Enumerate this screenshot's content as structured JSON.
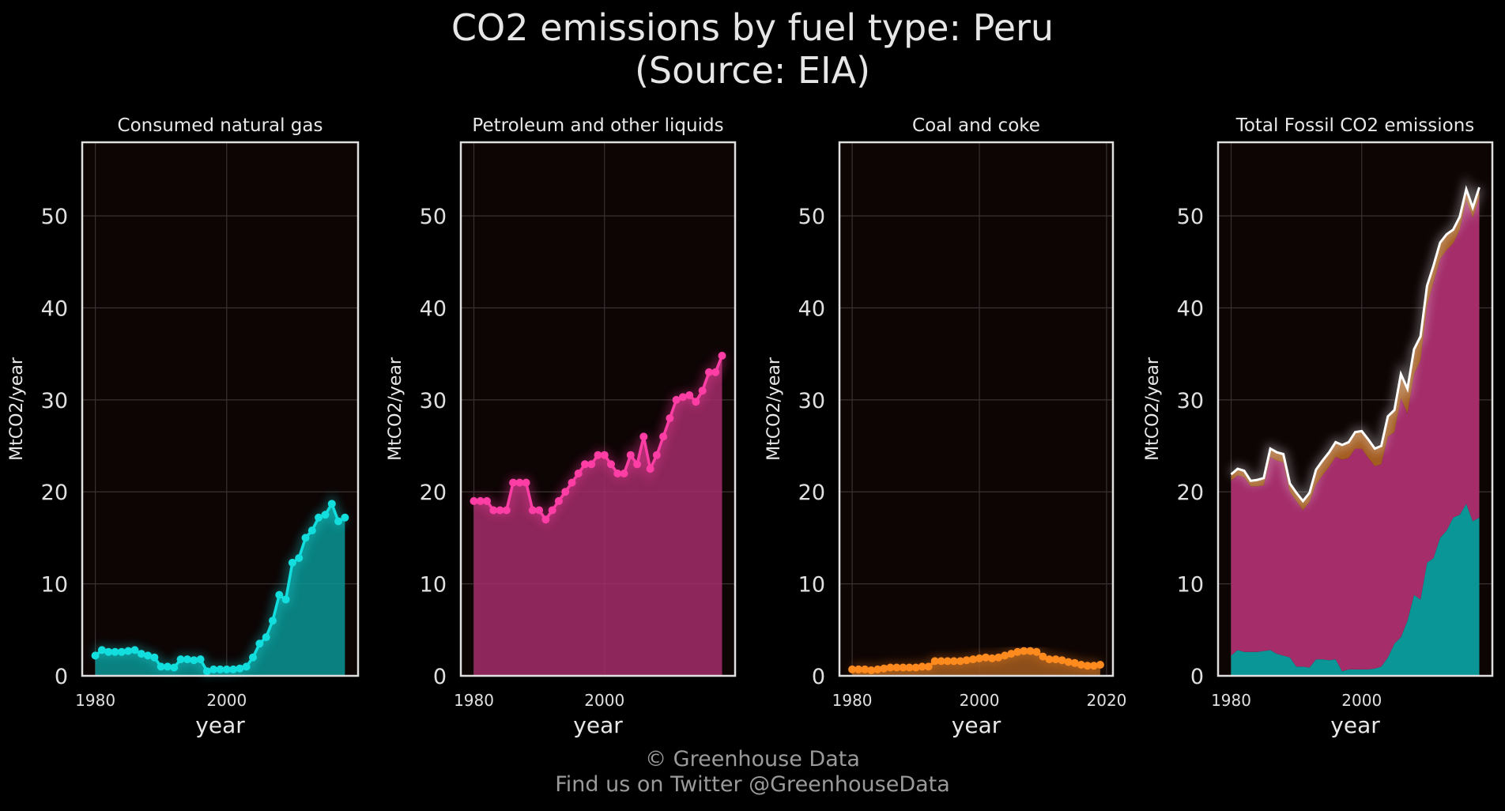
{
  "title": "CO2 emissions by fuel type: Peru",
  "subtitle": "(Source: EIA)",
  "credit": {
    "line1": "© Greenhouse Data",
    "line2": "Find us on Twitter @GreenhouseData"
  },
  "colors": {
    "background": "#000000",
    "plot_background": "#0d0404",
    "grid": "#3a3232",
    "frame": "#e0e0e0",
    "natural_gas": "#12dede",
    "natural_gas_fill": "#0a9696",
    "petroleum": "#ff3ea5",
    "petroleum_fill": "#a42d6a",
    "coal": "#ff8a1e",
    "coal_fill": "#a35c20",
    "total": "#ffffff"
  },
  "chart_data": [
    {
      "type": "line",
      "title": "Consumed natural gas",
      "xlabel": "year",
      "ylabel": "MtCO2/year",
      "xlim": [
        1978,
        2020
      ],
      "ylim": [
        0,
        58
      ],
      "xticks": [
        "1980",
        "2000"
      ],
      "yticks": [
        "0",
        "10",
        "20",
        "30",
        "40",
        "50"
      ],
      "grid": true,
      "x": [
        1980,
        1981,
        1982,
        1983,
        1984,
        1985,
        1986,
        1987,
        1988,
        1989,
        1990,
        1991,
        1992,
        1993,
        1994,
        1995,
        1996,
        1997,
        1998,
        1999,
        2000,
        2001,
        2002,
        2003,
        2004,
        2005,
        2006,
        2007,
        2008,
        2009,
        2010,
        2011,
        2012,
        2013,
        2014,
        2015,
        2016,
        2017,
        2018
      ],
      "series": [
        {
          "values": [
            2.2,
            2.8,
            2.6,
            2.6,
            2.6,
            2.7,
            2.8,
            2.4,
            2.2,
            2.0,
            1.0,
            1.0,
            0.9,
            1.8,
            1.8,
            1.7,
            1.8,
            0.5,
            0.7,
            0.7,
            0.7,
            0.7,
            0.8,
            1.0,
            2.0,
            3.5,
            4.2,
            6.0,
            8.8,
            8.3,
            12.3,
            12.8,
            15.0,
            15.8,
            17.2,
            17.5,
            18.7,
            16.8,
            17.2
          ]
        }
      ]
    },
    {
      "type": "line",
      "title": "Petroleum and other liquids",
      "xlabel": "year",
      "ylabel": "MtCO2/year",
      "xlim": [
        1978,
        2020
      ],
      "ylim": [
        0,
        58
      ],
      "xticks": [
        "1980",
        "2000"
      ],
      "yticks": [
        "0",
        "10",
        "20",
        "30",
        "40",
        "50"
      ],
      "grid": true,
      "x": [
        1980,
        1981,
        1982,
        1983,
        1984,
        1985,
        1986,
        1987,
        1988,
        1989,
        1990,
        1991,
        1992,
        1993,
        1994,
        1995,
        1996,
        1997,
        1998,
        1999,
        2000,
        2001,
        2002,
        2003,
        2004,
        2005,
        2006,
        2007,
        2008,
        2009,
        2010,
        2011,
        2012,
        2013,
        2014,
        2015,
        2016,
        2017,
        2018
      ],
      "series": [
        {
          "values": [
            19,
            19,
            19,
            18,
            18,
            18,
            21,
            21,
            21,
            18,
            18,
            17,
            18,
            19,
            20,
            21,
            22,
            23,
            23,
            24,
            24,
            23,
            22,
            22,
            24,
            23,
            26,
            22.5,
            24,
            26,
            28,
            30,
            30.3,
            30.5,
            29.8,
            31,
            33,
            33,
            34.8
          ]
        }
      ]
    },
    {
      "type": "line",
      "title": "Coal and coke",
      "xlabel": "year",
      "ylabel": "MtCO2/year",
      "xlim": [
        1978,
        2021
      ],
      "ylim": [
        0,
        58
      ],
      "xticks": [
        "1980",
        "2000",
        "2020"
      ],
      "yticks": [
        "0",
        "10",
        "20",
        "30",
        "40",
        "50"
      ],
      "grid": true,
      "x": [
        1980,
        1981,
        1982,
        1983,
        1984,
        1985,
        1986,
        1987,
        1988,
        1989,
        1990,
        1991,
        1992,
        1993,
        1994,
        1995,
        1996,
        1997,
        1998,
        1999,
        2000,
        2001,
        2002,
        2003,
        2004,
        2005,
        2006,
        2007,
        2008,
        2009,
        2010,
        2011,
        2012,
        2013,
        2014,
        2015,
        2016,
        2017,
        2018,
        2019
      ],
      "series": [
        {
          "values": [
            0.7,
            0.7,
            0.7,
            0.6,
            0.7,
            0.8,
            0.9,
            0.9,
            0.9,
            0.9,
            0.9,
            1.0,
            1.0,
            1.6,
            1.6,
            1.6,
            1.6,
            1.6,
            1.7,
            1.8,
            1.9,
            2.0,
            1.9,
            2.0,
            2.2,
            2.4,
            2.6,
            2.7,
            2.7,
            2.6,
            2.1,
            1.8,
            1.8,
            1.7,
            1.5,
            1.4,
            1.2,
            1.1,
            1.1,
            1.2
          ]
        }
      ]
    },
    {
      "type": "area",
      "title": "Total Fossil CO2 emissions",
      "xlabel": "year",
      "ylabel": "MtCO2/year",
      "xlim": [
        1978,
        2020
      ],
      "ylim": [
        0,
        58
      ],
      "xticks": [
        "1980",
        "2000"
      ],
      "yticks": [
        "0",
        "10",
        "20",
        "30",
        "40",
        "50"
      ],
      "grid": true,
      "x": [
        1980,
        1981,
        1982,
        1983,
        1984,
        1985,
        1986,
        1987,
        1988,
        1989,
        1990,
        1991,
        1992,
        1993,
        1994,
        1995,
        1996,
        1997,
        1998,
        1999,
        2000,
        2001,
        2002,
        2003,
        2004,
        2005,
        2006,
        2007,
        2008,
        2009,
        2010,
        2011,
        2012,
        2013,
        2014,
        2015,
        2016,
        2017,
        2018
      ],
      "stacked": true,
      "series": [
        {
          "values": [
            2.2,
            2.8,
            2.6,
            2.6,
            2.6,
            2.7,
            2.8,
            2.4,
            2.2,
            2.0,
            1.0,
            1.0,
            0.9,
            1.8,
            1.8,
            1.7,
            1.8,
            0.5,
            0.7,
            0.7,
            0.7,
            0.7,
            0.8,
            1.0,
            2.0,
            3.5,
            4.2,
            6.0,
            8.8,
            8.3,
            12.3,
            12.8,
            15.0,
            15.8,
            17.2,
            17.5,
            18.7,
            16.8,
            17.2
          ]
        },
        {
          "values": [
            19,
            19,
            19,
            18,
            18,
            18,
            21,
            21,
            21,
            18,
            18,
            17,
            18,
            19,
            20,
            21,
            22,
            23,
            23,
            24,
            24,
            23,
            22,
            22,
            24,
            23,
            26,
            22.5,
            24,
            26,
            28,
            30,
            30.3,
            30.5,
            29.8,
            31,
            33,
            33,
            34.8
          ]
        },
        {
          "values": [
            0.7,
            0.7,
            0.7,
            0.6,
            0.7,
            0.8,
            0.9,
            0.9,
            0.9,
            0.9,
            0.9,
            1.0,
            1.0,
            1.6,
            1.6,
            1.6,
            1.6,
            1.6,
            1.7,
            1.8,
            1.9,
            2.0,
            1.9,
            2.0,
            2.2,
            2.4,
            2.6,
            2.7,
            2.7,
            2.6,
            2.1,
            1.8,
            1.8,
            1.7,
            1.5,
            1.4,
            1.2,
            1.1,
            1.1
          ]
        }
      ]
    }
  ]
}
